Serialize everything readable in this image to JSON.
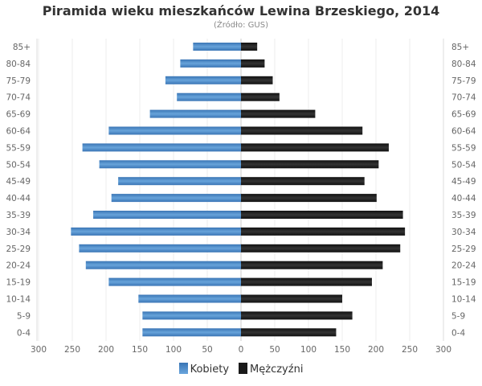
{
  "title": "Piramida wieku mieszkańców Lewina Brzeskiego, 2014",
  "subtitle": "(Źródło: GUS)",
  "chart_data": {
    "type": "bar",
    "orientation": "horizontal-population-pyramid",
    "title": "Piramida wieku mieszkańców Lewina Brzeskiego, 2014",
    "subtitle": "(Źródło: GUS)",
    "categories": [
      "85+",
      "80-84",
      "75-79",
      "70-74",
      "65-69",
      "60-64",
      "55-59",
      "50-54",
      "45-49",
      "40-44",
      "35-39",
      "30-34",
      "25-29",
      "20-24",
      "15-19",
      "10-14",
      "5-9",
      "0-4"
    ],
    "series": [
      {
        "name": "Kobiety",
        "color": "#4a86c5",
        "side": "left",
        "values": [
          71,
          90,
          112,
          95,
          135,
          196,
          235,
          210,
          182,
          192,
          219,
          252,
          240,
          230,
          196,
          152,
          146,
          146
        ]
      },
      {
        "name": "Mężczyźni",
        "color": "#1a1a1a",
        "side": "right",
        "values": [
          24,
          35,
          47,
          57,
          110,
          180,
          219,
          204,
          183,
          201,
          240,
          243,
          236,
          210,
          194,
          150,
          165,
          141
        ]
      }
    ],
    "xlim": [
      -300,
      300
    ],
    "xticks": [
      "300",
      "250",
      "200",
      "150",
      "100",
      "50",
      "0",
      "50",
      "100",
      "150",
      "200",
      "250",
      "300"
    ],
    "grid": true,
    "legend": "bottom"
  }
}
